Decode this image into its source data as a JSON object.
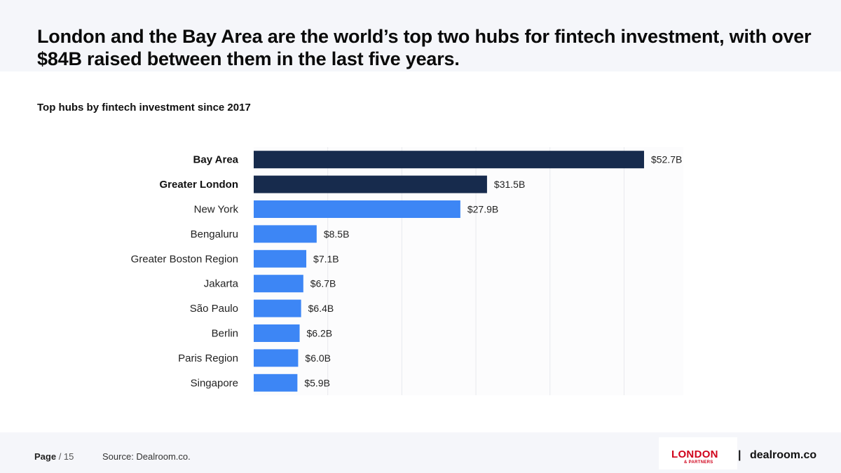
{
  "header": {
    "title": "London and the Bay Area are the world’s top two hubs for fintech investment, with over $84B raised between them in the last five years."
  },
  "chart_data": {
    "type": "bar",
    "orientation": "horizontal",
    "title": "Top hubs by fintech investment since 2017",
    "xlabel": "",
    "ylabel": "",
    "unit": "$B",
    "categories": [
      "Bay Area",
      "Greater London",
      "New York",
      "Bengaluru",
      "Greater Boston Region",
      "Jakarta",
      "São Paulo",
      "Berlin",
      "Paris Region",
      "Singapore"
    ],
    "values": [
      52.7,
      31.5,
      27.9,
      8.5,
      7.1,
      6.7,
      6.4,
      6.2,
      6.0,
      5.9
    ],
    "value_labels": [
      "$52.7B",
      "$31.5B",
      "$27.9B",
      "$8.5B",
      "$7.1B",
      "$6.7B",
      "$6.4B",
      "$6.2B",
      "$6.0B",
      "$5.9B"
    ],
    "highlighted": [
      "Bay Area",
      "Greater London"
    ],
    "xlim": [
      0,
      58
    ],
    "grid": true,
    "legend": "none",
    "colors": {
      "highlight": "#172b4d",
      "default": "#3d86f5",
      "grid": "#e8e9ee"
    }
  },
  "footer": {
    "page_label": "Page",
    "page_total": "/ 15",
    "source": "Source: Dealroom.co.",
    "logo_primary": "LONDON",
    "logo_secondary": "& PARTNERS",
    "separator": "|",
    "logo_dealroom": "dealroom.co"
  }
}
